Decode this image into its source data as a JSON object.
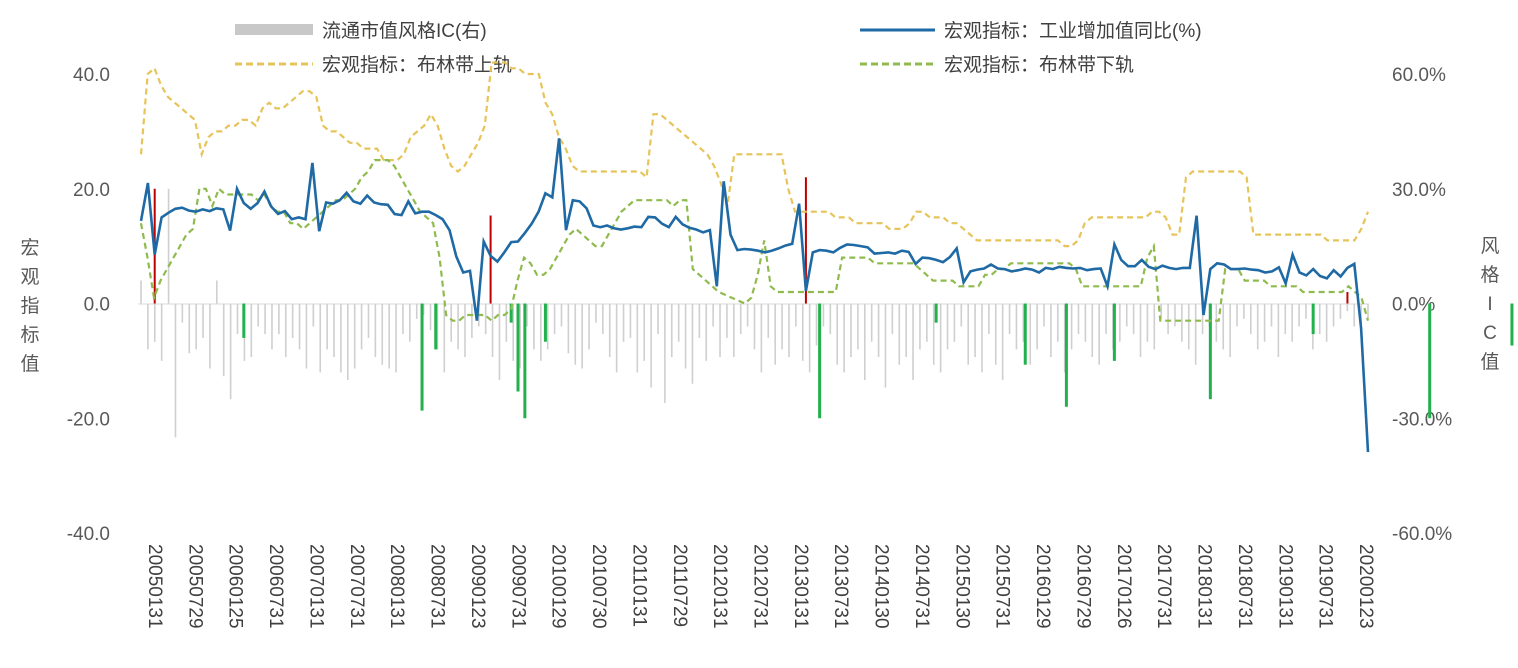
{
  "chart_data": {
    "type": "combo-bar-line",
    "legend": [
      {
        "name": "流通市值风格IC(右)",
        "style": "bar",
        "color": "#bfbfbf"
      },
      {
        "name": "宏观指标：工业增加值同比(%)",
        "style": "solid",
        "color": "#1f6aa5"
      },
      {
        "name": "宏观指标：布林带上轨",
        "style": "dashed",
        "color": "#e6c45a"
      },
      {
        "name": "宏观指标：布林带下轨",
        "style": "dashed",
        "color": "#8fbb4e"
      }
    ],
    "left_axis": {
      "label": "宏观指标值",
      "ticks": [
        "40.0",
        "20.0",
        "0.0",
        "-20.0",
        "-40.0"
      ],
      "min": -40,
      "max": 40
    },
    "right_axis": {
      "label": "风格IC值",
      "ticks": [
        "60.0%",
        "30.0%",
        "0.0%",
        "-30.0%",
        "-60.0%"
      ],
      "min": -60,
      "max": 60
    },
    "x_tick_labels": [
      "20050131",
      "20050729",
      "20060125",
      "20060731",
      "20070131",
      "20070731",
      "20080131",
      "20080731",
      "20090123",
      "20090731",
      "20100129",
      "20100730",
      "20110131",
      "20110729",
      "20120131",
      "20120731",
      "20130131",
      "20130731",
      "20140130",
      "20140731",
      "20150130",
      "20150731",
      "20160129",
      "20160729",
      "20170126",
      "20170731",
      "20180131",
      "20180731",
      "20190131",
      "20190731",
      "20200123"
    ],
    "ic_values_pct": [
      6,
      -12,
      -10,
      -15,
      30,
      -35,
      -5,
      -13,
      -12,
      -9,
      -17,
      6,
      -19,
      -25,
      -8,
      -15,
      -14,
      -6,
      -8,
      -12,
      -8,
      -14,
      -9,
      -12,
      -17,
      -6,
      -18,
      -12,
      -14,
      -18,
      -20,
      -17,
      -12,
      -9,
      -14,
      -16,
      -17,
      -18,
      -8,
      -10,
      -4,
      -3,
      -7,
      -12,
      -18,
      -10,
      -12,
      -14,
      -9,
      -6,
      -8,
      -14,
      -20,
      -10,
      -15,
      -17,
      -6,
      -12,
      -15,
      -12,
      -8,
      -6,
      -13,
      -16,
      -17,
      -12,
      -5,
      -8,
      -14,
      -18,
      -10,
      -9,
      -18,
      -15,
      -22,
      -8,
      -26,
      -14,
      -10,
      -17,
      -21,
      -9,
      -15,
      -6,
      -14,
      -9,
      -14,
      -8,
      -6,
      -12,
      -18,
      -9,
      -16,
      -12,
      -14,
      -6,
      -15,
      -18,
      -11,
      -6,
      -8,
      -16,
      -18,
      -14,
      -12,
      -20,
      -10,
      -14,
      -22,
      -8,
      -16,
      -14,
      -20,
      -12,
      -10,
      -16,
      -18,
      -12,
      -10,
      -6,
      -16,
      -14,
      -18,
      -8,
      -16,
      -20,
      -8,
      -12,
      -10,
      -16,
      -12,
      -6,
      -14,
      -10,
      -18,
      -12,
      -8,
      -10,
      -14,
      -16,
      -8,
      -12,
      -10,
      -6,
      -8,
      -14,
      -10,
      -12,
      -4,
      -8,
      -6,
      -10,
      -12,
      -16,
      -8,
      -6,
      -10,
      -12,
      -14,
      -6,
      -4,
      -8,
      -12,
      -10,
      -6,
      -14,
      -8,
      -10,
      -6,
      -4,
      -12,
      -8,
      -10,
      -6,
      -4,
      -2,
      -6,
      -8,
      -4
    ],
    "red_bars": [
      {
        "i": 2,
        "v": 30
      },
      {
        "i": 51,
        "v": 23
      },
      {
        "i": 97,
        "v": 33
      },
      {
        "i": 176,
        "v": 3
      }
    ],
    "green_bars": [
      {
        "i": 15,
        "v": -9
      },
      {
        "i": 41,
        "v": -28
      },
      {
        "i": 43,
        "v": -12
      },
      {
        "i": 54,
        "v": -5
      },
      {
        "i": 55,
        "v": -23
      },
      {
        "i": 56,
        "v": -30
      },
      {
        "i": 59,
        "v": -10
      },
      {
        "i": 99,
        "v": -30
      },
      {
        "i": 116,
        "v": -5
      },
      {
        "i": 129,
        "v": -16
      },
      {
        "i": 135,
        "v": -27
      },
      {
        "i": 142,
        "v": -15
      },
      {
        "i": 156,
        "v": -25
      },
      {
        "i": 171,
        "v": -8
      },
      {
        "i": 188,
        "v": -30
      },
      {
        "i": 200,
        "v": -11
      }
    ],
    "ip_yoy": [
      14.4,
      21,
      8.5,
      15,
      15.8,
      16.5,
      16.7,
      16.2,
      16,
      16.4,
      16.1,
      16.6,
      16.4,
      12.7,
      20,
      17.5,
      16.5,
      17.5,
      19.5,
      16.9,
      15.6,
      16.1,
      14.7,
      15,
      14.7,
      24.5,
      12.6,
      17.6,
      17.4,
      18,
      19.3,
      17.8,
      17.4,
      18.8,
      17.6,
      17.3,
      17.2,
      15.6,
      15.4,
      17.8,
      15.7,
      16,
      16,
      15.4,
      14.7,
      12.8,
      8.2,
      5.4,
      5.7,
      -3,
      10.8,
      8.3,
      7.3,
      8.9,
      10.7,
      10.8,
      12.3,
      13.9,
      16,
      19.2,
      18.5,
      28.8,
      12.8,
      18,
      17.8,
      16.6,
      13.6,
      13.3,
      13.6,
      13.1,
      12.9,
      13.1,
      13.4,
      13.3,
      15.1,
      15,
      13.9,
      13.3,
      15.1,
      13.8,
      13.2,
      12.9,
      12.4,
      12.8,
      3,
      21.3,
      12,
      9.3,
      9.5,
      9.4,
      9.2,
      8.9,
      9.2,
      9.6,
      10.1,
      10.4,
      17.4,
      2.2,
      8.9,
      9.3,
      9.2,
      8.9,
      9.7,
      10.3,
      10.2,
      10,
      9.8,
      8.7,
      8.8,
      8.9,
      8.7,
      9.2,
      9,
      6.9,
      8,
      7.9,
      7.6,
      7.2,
      8.1,
      9.6,
      3.7,
      5.6,
      5.9,
      6.1,
      6.8,
      6.1,
      6.0,
      5.6,
      5.8,
      6.1,
      5.9,
      5.4,
      6.2,
      6.0,
      6.4,
      6.2,
      6.1,
      6.2,
      5.8,
      6.0,
      6.1,
      3.0,
      10.3,
      7.6,
      6.5,
      6.5,
      7.6,
      6.4,
      6.0,
      6.6,
      6.2,
      6.0,
      6.2,
      6.2,
      15.3,
      -2.0,
      6.0,
      7.0,
      6.8,
      6.0,
      6.0,
      6.1,
      5.9,
      5.8,
      5.4,
      5.6,
      6.3,
      3.5,
      8.5,
      5.4,
      4.9,
      6.0,
      4.8,
      4.4,
      5.8,
      4.7,
      6.2,
      6.9,
      -4.3,
      -25.9
    ],
    "bb_upper": [
      26,
      40,
      41,
      38,
      36,
      35,
      34,
      33,
      32,
      26,
      29,
      30,
      30,
      31,
      31,
      32,
      32,
      31,
      34,
      35,
      34,
      34,
      35,
      36,
      37,
      37,
      36,
      31,
      30,
      30,
      29,
      28,
      28,
      27,
      27,
      27,
      25,
      25,
      25,
      26,
      29,
      30,
      31,
      33,
      31,
      27,
      24,
      23,
      24,
      26,
      28,
      31,
      42,
      42,
      42,
      41,
      41,
      40,
      40,
      40,
      35,
      33,
      29,
      27,
      24,
      23,
      23,
      23,
      23,
      23,
      23,
      23,
      23,
      23,
      23,
      22,
      33,
      33,
      32,
      31,
      30,
      29,
      28,
      27,
      26,
      24,
      21,
      17,
      26,
      26,
      26,
      26,
      26,
      26,
      26,
      26,
      20,
      16,
      16,
      16,
      16,
      16,
      16,
      15,
      15,
      15,
      14,
      14,
      14,
      14,
      14,
      13,
      13,
      13,
      14,
      16,
      16,
      15,
      15,
      15,
      14,
      14,
      13,
      12,
      11,
      11,
      11,
      11,
      11,
      11,
      11,
      11,
      11,
      11,
      11,
      11,
      11,
      10,
      10,
      11,
      14,
      15,
      15,
      15,
      15,
      15,
      15,
      15,
      15,
      15,
      16,
      16,
      15,
      12,
      12,
      22,
      23,
      23,
      23,
      23,
      23,
      23,
      23,
      23,
      22,
      12,
      12,
      12,
      12,
      12,
      12,
      12,
      12,
      12,
      12,
      12,
      11,
      11,
      11,
      11,
      11,
      13,
      16
    ],
    "bb_lower": [
      14,
      8,
      1,
      4,
      6,
      8,
      10,
      12,
      13,
      20,
      20,
      17,
      20,
      19,
      19,
      19,
      19,
      19,
      18,
      19,
      17,
      16,
      16,
      14,
      14,
      13,
      14,
      15,
      16,
      17,
      18,
      18,
      19,
      20,
      22,
      23,
      25,
      25,
      25,
      24,
      22,
      20,
      18,
      16,
      15,
      14,
      8,
      -2,
      -3,
      -3,
      -2,
      -2,
      -2,
      -2,
      -3,
      -2,
      -2,
      -1,
      4,
      8,
      7,
      5,
      5,
      6,
      8,
      10,
      12,
      13,
      12,
      11,
      10,
      10,
      12,
      14,
      16,
      17,
      18,
      18,
      18,
      18,
      18,
      18,
      17,
      18,
      18,
      6,
      5,
      4,
      3,
      2,
      1.5,
      1,
      0.5,
      0,
      1,
      5,
      11,
      3,
      2,
      2,
      2,
      2,
      2,
      2,
      2,
      2,
      2,
      2,
      8,
      8,
      8,
      8,
      8,
      7,
      7,
      7,
      7,
      7,
      7,
      7,
      6,
      5,
      4,
      4,
      4,
      4,
      3,
      3,
      3,
      3,
      5,
      5,
      6,
      6,
      7,
      7,
      7,
      7,
      7,
      7,
      7,
      7,
      7,
      7,
      6,
      3,
      3,
      3,
      3,
      3,
      3,
      3,
      3,
      3,
      3,
      8,
      10,
      -3,
      -3,
      -3,
      -3,
      -3,
      -3,
      -3,
      -3,
      -3,
      -3,
      6,
      6,
      6,
      4,
      4,
      4,
      4,
      3,
      3,
      3,
      3,
      3,
      2,
      2,
      2,
      2,
      2,
      2,
      2,
      3,
      2,
      1,
      -3
    ]
  }
}
